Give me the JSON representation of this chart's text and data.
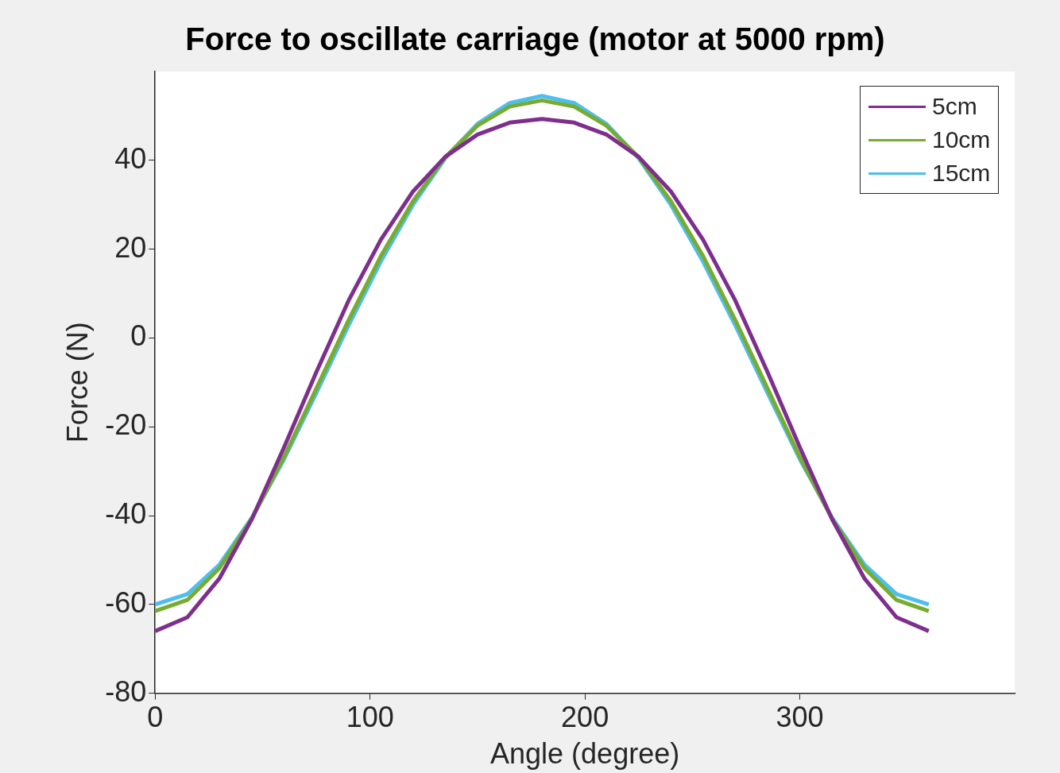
{
  "chart_data": {
    "type": "line",
    "title": "Force to oscillate carriage (motor at 5000 rpm)",
    "xlabel": "Angle (degree)",
    "ylabel": "Force (N)",
    "x": [
      0,
      15,
      30,
      45,
      60,
      75,
      90,
      105,
      120,
      135,
      150,
      165,
      180,
      195,
      210,
      225,
      240,
      255,
      270,
      285,
      300,
      315,
      330,
      345,
      360
    ],
    "series": [
      {
        "name": "5cm",
        "color": "#7e2f8e",
        "values": [
          -66.0,
          -62.9,
          -54.1,
          -40.8,
          -24.6,
          -7.7,
          8.4,
          22.1,
          33.0,
          40.8,
          45.8,
          48.5,
          49.3,
          48.5,
          45.8,
          40.8,
          33.0,
          22.1,
          8.4,
          -7.7,
          -24.6,
          -40.8,
          -54.1,
          -62.9,
          -66.0
        ]
      },
      {
        "name": "10cm",
        "color": "#77ac30",
        "values": [
          -61.5,
          -59.0,
          -51.8,
          -40.7,
          -26.8,
          -11.4,
          4.0,
          18.4,
          30.8,
          40.7,
          47.8,
          52.1,
          53.5,
          52.1,
          47.8,
          40.7,
          30.8,
          18.4,
          4.0,
          -11.4,
          -26.8,
          -40.7,
          -51.8,
          -59.0,
          -61.5
        ]
      },
      {
        "name": "15cm",
        "color": "#4dbeee",
        "values": [
          -60.0,
          -57.7,
          -51.0,
          -40.5,
          -27.3,
          -12.4,
          2.8,
          17.2,
          30.0,
          40.5,
          48.2,
          52.9,
          54.5,
          52.9,
          48.2,
          40.5,
          30.0,
          17.2,
          2.8,
          -12.4,
          -27.3,
          -40.5,
          -51.0,
          -57.7,
          -60.0
        ]
      }
    ],
    "xlim": [
      0,
      400
    ],
    "xticks": [
      0,
      100,
      200,
      300
    ],
    "ylim": [
      -80,
      60
    ],
    "yticks": [
      -80,
      -60,
      -40,
      -20,
      0,
      20,
      40
    ],
    "grid": false,
    "legend": "top right",
    "marker": "none",
    "line_style": "solid"
  }
}
